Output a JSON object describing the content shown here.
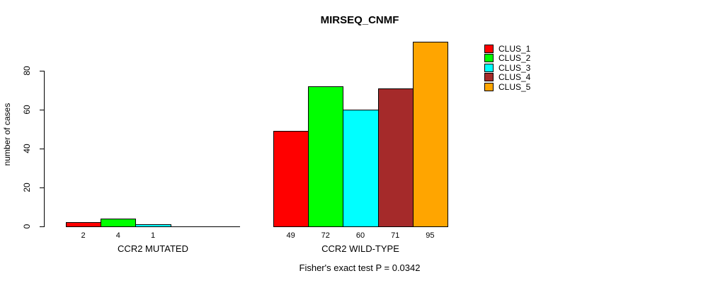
{
  "title": "MIRSEQ_CNMF",
  "chart_data": {
    "type": "bar",
    "title": "MIRSEQ_CNMF",
    "xlabel": "",
    "ylabel": "number of cases",
    "yticks": [
      0,
      20,
      40,
      60,
      80
    ],
    "ylim": [
      0,
      95
    ],
    "grid": false,
    "legend_position": "right",
    "series": [
      {
        "name": "CLUS_1",
        "color": "#FF0000"
      },
      {
        "name": "CLUS_2",
        "color": "#00FF00"
      },
      {
        "name": "CLUS_3",
        "color": "#00FFFF"
      },
      {
        "name": "CLUS_4",
        "color": "#A52A2A"
      },
      {
        "name": "CLUS_5",
        "color": "#FFA500"
      }
    ],
    "groups": [
      {
        "label": "CCR2 MUTATED",
        "values": [
          2,
          4,
          1,
          0,
          0
        ],
        "bar_labels": [
          "2",
          "4",
          "1",
          "",
          ""
        ]
      },
      {
        "label": "CCR2 WILD-TYPE",
        "values": [
          49,
          72,
          60,
          71,
          95
        ],
        "bar_labels": [
          "49",
          "72",
          "60",
          "71",
          "95"
        ]
      }
    ],
    "annotation": "Fisher's exact test P = 0.0342"
  },
  "colors": {
    "background": "#FFFFFF",
    "axis": "#000000",
    "clus_1": "#FF0000",
    "clus_2": "#00FF00",
    "clus_3": "#00FFFF",
    "clus_4": "#A52A2A",
    "clus_5": "#FFA500"
  }
}
